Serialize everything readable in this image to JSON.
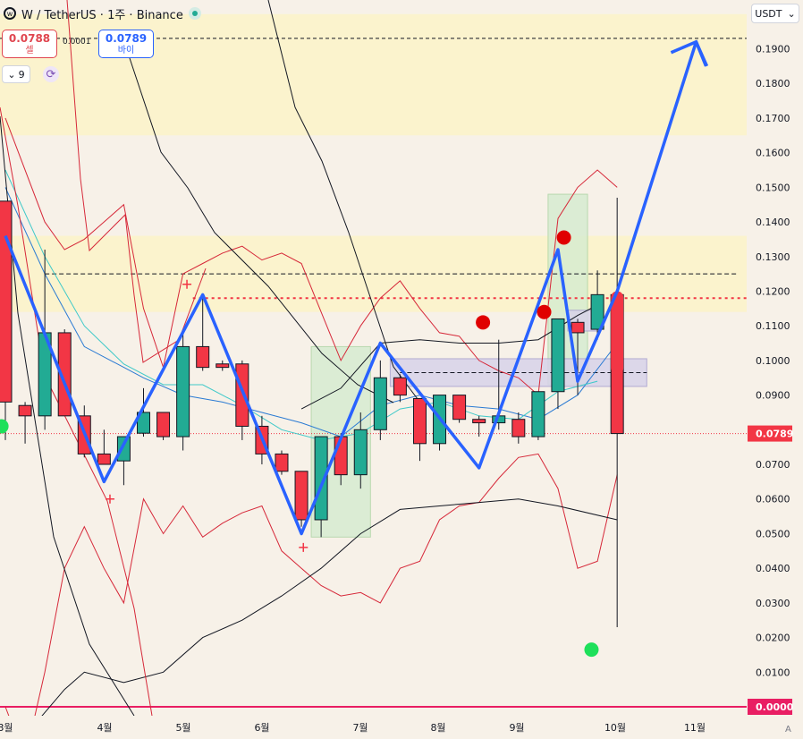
{
  "header": {
    "symbol_title": "W / TetherUS · 1주 · Binance",
    "logo_icon": "w-logo-icon",
    "status_icon": "market-status-dot-icon"
  },
  "trade": {
    "sell_price": "0.0788",
    "sell_label": "셀",
    "buy_price": "0.0789",
    "buy_label": "바이",
    "spread": "0.0001"
  },
  "indicator_toggle": {
    "count": "9",
    "icon": "chevron-down-icon"
  },
  "refresh_icon": "refresh-icon",
  "currency_selector": {
    "value": "USDT",
    "icon": "chevron-down-icon"
  },
  "auto_scale_label": "A",
  "colors": {
    "up": "#22ab94",
    "down": "#f23645",
    "zigzag": "#2962ff",
    "supply_zone": "#fbf3c8",
    "demand_zone": "#d5ecd0",
    "order_block": "#d8d3ea",
    "price_tag": "#f23645",
    "zero_line": "#e91e63"
  },
  "chart_data": {
    "type": "candlestick",
    "y_axis": {
      "ticks": [
        "0.1900",
        "0.1800",
        "0.1700",
        "0.1600",
        "0.1500",
        "0.1400",
        "0.1300",
        "0.1200",
        "0.1100",
        "0.1000",
        "0.0900",
        "0.0800",
        "0.0700",
        "0.0600",
        "0.0500",
        "0.0400",
        "0.0300",
        "0.0200",
        "0.0100"
      ],
      "current_price_tag": "0.0789",
      "zero_tag": "0.0000"
    },
    "x_axis": {
      "ticks": [
        "3월",
        "4월",
        "5월",
        "6월",
        "7월",
        "8월",
        "9월",
        "10월",
        "11월"
      ]
    },
    "candles": [
      {
        "o": 0.146,
        "h": 0.146,
        "l": 0.077,
        "c": 0.088
      },
      {
        "o": 0.087,
        "h": 0.088,
        "l": 0.076,
        "c": 0.084
      },
      {
        "o": 0.084,
        "h": 0.132,
        "l": 0.08,
        "c": 0.108
      },
      {
        "o": 0.108,
        "h": 0.109,
        "l": 0.084,
        "c": 0.084
      },
      {
        "o": 0.084,
        "h": 0.087,
        "l": 0.072,
        "c": 0.073
      },
      {
        "o": 0.073,
        "h": 0.08,
        "l": 0.07,
        "c": 0.07
      },
      {
        "o": 0.071,
        "h": 0.078,
        "l": 0.064,
        "c": 0.078
      },
      {
        "o": 0.079,
        "h": 0.092,
        "l": 0.078,
        "c": 0.085
      },
      {
        "o": 0.085,
        "h": 0.085,
        "l": 0.077,
        "c": 0.078
      },
      {
        "o": 0.078,
        "h": 0.109,
        "l": 0.074,
        "c": 0.104
      },
      {
        "o": 0.104,
        "h": 0.119,
        "l": 0.097,
        "c": 0.098
      },
      {
        "o": 0.099,
        "h": 0.1,
        "l": 0.097,
        "c": 0.098
      },
      {
        "o": 0.099,
        "h": 0.1,
        "l": 0.077,
        "c": 0.081
      },
      {
        "o": 0.081,
        "h": 0.084,
        "l": 0.07,
        "c": 0.073
      },
      {
        "o": 0.073,
        "h": 0.074,
        "l": 0.067,
        "c": 0.068
      },
      {
        "o": 0.068,
        "h": 0.068,
        "l": 0.052,
        "c": 0.054
      },
      {
        "o": 0.054,
        "h": 0.078,
        "l": 0.049,
        "c": 0.078
      },
      {
        "o": 0.078,
        "h": 0.079,
        "l": 0.064,
        "c": 0.067
      },
      {
        "o": 0.067,
        "h": 0.085,
        "l": 0.063,
        "c": 0.08
      },
      {
        "o": 0.08,
        "h": 0.1,
        "l": 0.077,
        "c": 0.095
      },
      {
        "o": 0.095,
        "h": 0.096,
        "l": 0.088,
        "c": 0.09
      },
      {
        "o": 0.089,
        "h": 0.089,
        "l": 0.071,
        "c": 0.076
      },
      {
        "o": 0.076,
        "h": 0.09,
        "l": 0.074,
        "c": 0.09
      },
      {
        "o": 0.09,
        "h": 0.09,
        "l": 0.082,
        "c": 0.083
      },
      {
        "o": 0.083,
        "h": 0.084,
        "l": 0.078,
        "c": 0.082
      },
      {
        "o": 0.082,
        "h": 0.106,
        "l": 0.08,
        "c": 0.084
      },
      {
        "o": 0.083,
        "h": 0.085,
        "l": 0.076,
        "c": 0.078
      },
      {
        "o": 0.078,
        "h": 0.091,
        "l": 0.077,
        "c": 0.091
      },
      {
        "o": 0.091,
        "h": 0.112,
        "l": 0.086,
        "c": 0.112
      },
      {
        "o": 0.111,
        "h": 0.112,
        "l": 0.09,
        "c": 0.108
      },
      {
        "o": 0.109,
        "h": 0.126,
        "l": 0.106,
        "c": 0.119
      },
      {
        "o": 0.119,
        "h": 0.147,
        "l": 0.023,
        "c": 0.0789
      }
    ],
    "overlays": {
      "zigzag": [
        [
          0,
          0.136
        ],
        [
          5,
          0.065
        ],
        [
          10,
          0.119
        ],
        [
          15,
          0.05
        ],
        [
          19,
          0.105
        ],
        [
          24,
          0.069
        ],
        [
          28,
          0.132
        ],
        [
          29,
          0.094
        ],
        [
          31,
          0.12
        ],
        [
          35,
          0.192
        ],
        [
          35.5,
          0.185
        ]
      ],
      "supply_zones": [
        [
          0.165,
          0.2
        ],
        [
          0.114,
          0.136
        ]
      ],
      "demand_zones": [
        {
          "from": 15.5,
          "to": 18.5,
          "top": 0.104,
          "bottom": 0.049
        },
        {
          "from": 27.5,
          "to": 29.5,
          "top": 0.148,
          "bottom": 0.093
        }
      ],
      "order_blocks": [
        {
          "from": 19.5,
          "to": 32.5,
          "top": 0.1005,
          "bottom": 0.0925
        },
        {
          "from": 28.5,
          "to": 30.0,
          "top": 0.1145,
          "bottom": 0.1085
        }
      ],
      "signal_dots_red": [
        [
          24.2,
          0.111
        ],
        [
          27.3,
          0.114
        ],
        [
          28.3,
          0.1355
        ]
      ],
      "signal_dots_green": [
        [
          -0.2,
          0.081
        ],
        [
          29.7,
          0.0165
        ]
      ],
      "plus_markers": [
        [
          5.3,
          0.06
        ],
        [
          9.2,
          0.122
        ],
        [
          15.1,
          0.046
        ]
      ]
    }
  }
}
